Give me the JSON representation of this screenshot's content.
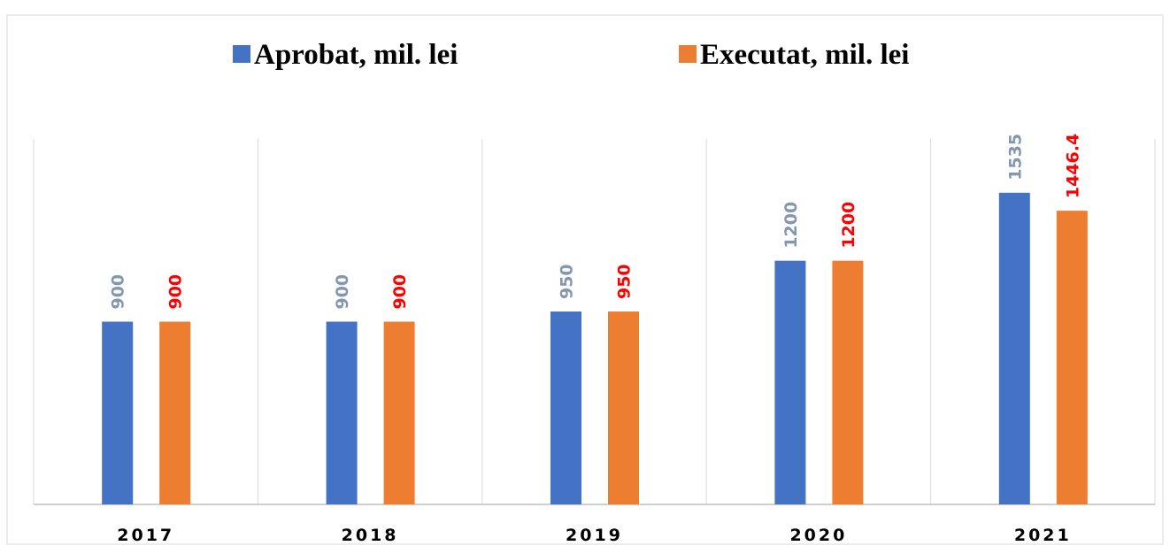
{
  "chart_data": {
    "type": "bar",
    "categories": [
      "2017",
      "2018",
      "2019",
      "2020",
      "2021"
    ],
    "series": [
      {
        "name": "Aprobat, mil. lei",
        "color": "#4472c4",
        "label_color": "#8497b0",
        "values": [
          900,
          900,
          950,
          1200,
          1535
        ]
      },
      {
        "name": "Executat, mil. lei",
        "color": "#ed7d31",
        "label_color": "#ff0000",
        "values": [
          900,
          900,
          950,
          1200,
          1446.4
        ]
      }
    ],
    "ylim": [
      0,
      1800
    ],
    "legend": "top"
  }
}
